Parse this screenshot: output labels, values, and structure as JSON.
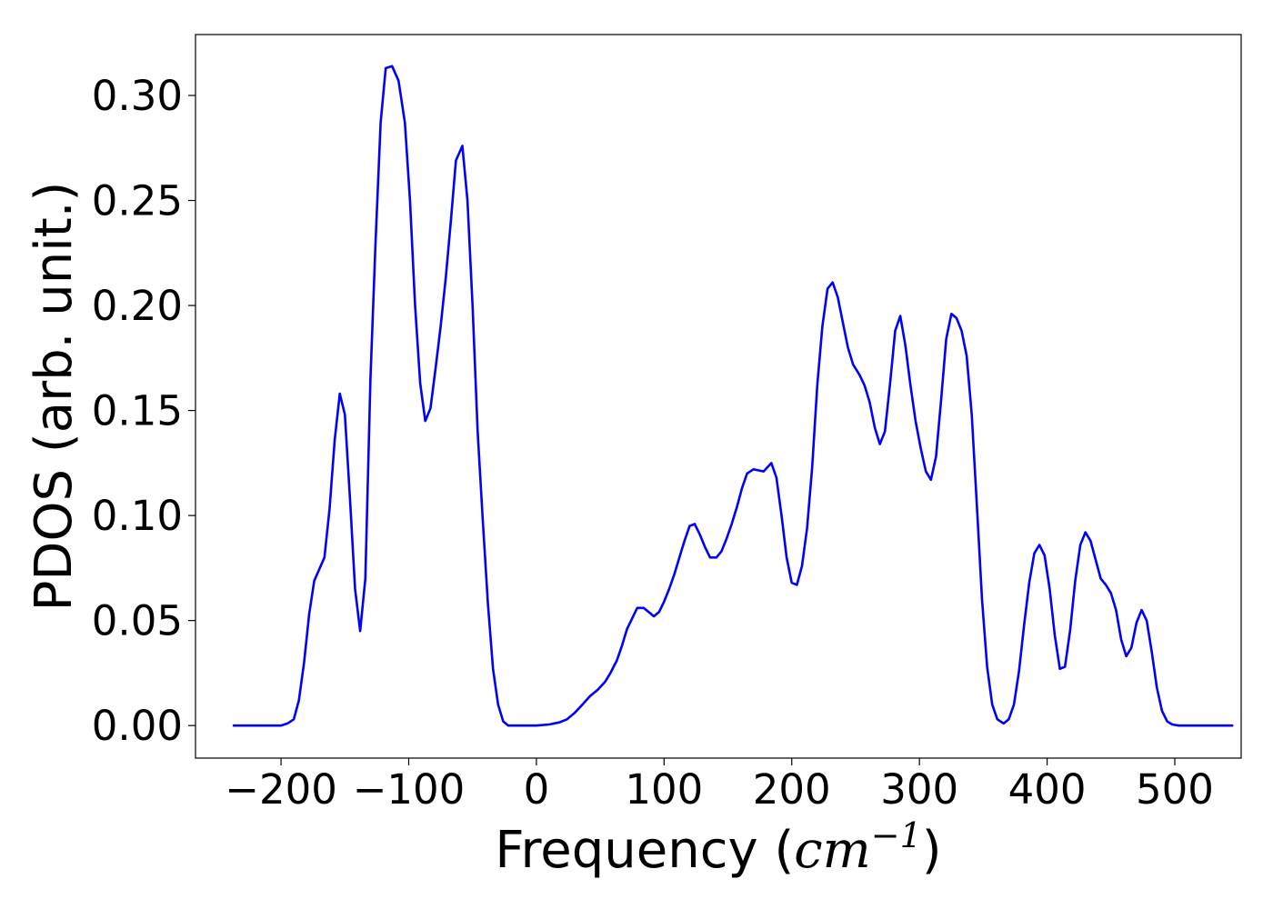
{
  "chart_data": {
    "type": "line",
    "title": "",
    "xlabel": {
      "prefix": "Frequency (",
      "math": "cm",
      "superscript": "−1",
      "suffix": ")"
    },
    "ylabel": "PDOS (arb. unit.)",
    "xlim": [
      -267,
      552
    ],
    "ylim": [
      -0.0155,
      0.329
    ],
    "x_ticks": [
      {
        "value": -200,
        "label": "−200"
      },
      {
        "value": -100,
        "label": "−100"
      },
      {
        "value": 0,
        "label": "0"
      },
      {
        "value": 100,
        "label": "100"
      },
      {
        "value": 200,
        "label": "200"
      },
      {
        "value": 300,
        "label": "300"
      },
      {
        "value": 400,
        "label": "400"
      },
      {
        "value": 500,
        "label": "500"
      }
    ],
    "y_ticks": [
      {
        "value": 0.0,
        "label": "0.00"
      },
      {
        "value": 0.05,
        "label": "0.05"
      },
      {
        "value": 0.1,
        "label": "0.10"
      },
      {
        "value": 0.15,
        "label": "0.15"
      },
      {
        "value": 0.2,
        "label": "0.20"
      },
      {
        "value": 0.25,
        "label": "0.25"
      },
      {
        "value": 0.3,
        "label": "0.30"
      }
    ],
    "grid": false,
    "legend": "none",
    "series": [
      {
        "color": "#0000ff",
        "points": [
          [
            -237,
            0.0
          ],
          [
            -200,
            0.0
          ],
          [
            -195,
            0.001
          ],
          [
            -190,
            0.003
          ],
          [
            -186,
            0.012
          ],
          [
            -182,
            0.03
          ],
          [
            -178,
            0.053
          ],
          [
            -174,
            0.069
          ],
          [
            -166,
            0.08
          ],
          [
            -162,
            0.103
          ],
          [
            -158,
            0.136
          ],
          [
            -154,
            0.158
          ],
          [
            -150,
            0.148
          ],
          [
            -146,
            0.108
          ],
          [
            -142,
            0.065
          ],
          [
            -138,
            0.045
          ],
          [
            -134,
            0.07
          ],
          [
            -130,
            0.165
          ],
          [
            -126,
            0.23
          ],
          [
            -122,
            0.287
          ],
          [
            -118,
            0.313
          ],
          [
            -113,
            0.314
          ],
          [
            -108,
            0.307
          ],
          [
            -103,
            0.287
          ],
          [
            -99,
            0.25
          ],
          [
            -95,
            0.2
          ],
          [
            -91,
            0.163
          ],
          [
            -87,
            0.145
          ],
          [
            -83,
            0.151
          ],
          [
            -79,
            0.17
          ],
          [
            -75,
            0.19
          ],
          [
            -71,
            0.213
          ],
          [
            -67,
            0.24
          ],
          [
            -63,
            0.269
          ],
          [
            -58,
            0.276
          ],
          [
            -54,
            0.25
          ],
          [
            -50,
            0.2
          ],
          [
            -46,
            0.14
          ],
          [
            -42,
            0.098
          ],
          [
            -38,
            0.058
          ],
          [
            -34,
            0.027
          ],
          [
            -30,
            0.01
          ],
          [
            -26,
            0.002
          ],
          [
            -22,
            0.0
          ],
          [
            -10,
            0.0
          ],
          [
            0,
            0.0
          ],
          [
            10,
            0.0005
          ],
          [
            18,
            0.0015
          ],
          [
            24,
            0.003
          ],
          [
            30,
            0.006
          ],
          [
            36,
            0.01
          ],
          [
            42,
            0.014
          ],
          [
            48,
            0.017
          ],
          [
            54,
            0.021
          ],
          [
            58,
            0.025
          ],
          [
            63,
            0.031
          ],
          [
            67,
            0.038
          ],
          [
            71,
            0.046
          ],
          [
            75,
            0.051
          ],
          [
            79,
            0.056
          ],
          [
            84,
            0.056
          ],
          [
            88,
            0.054
          ],
          [
            92,
            0.052
          ],
          [
            96,
            0.054
          ],
          [
            100,
            0.059
          ],
          [
            104,
            0.065
          ],
          [
            108,
            0.072
          ],
          [
            112,
            0.08
          ],
          [
            116,
            0.088
          ],
          [
            120,
            0.095
          ],
          [
            124,
            0.096
          ],
          [
            128,
            0.091
          ],
          [
            132,
            0.085
          ],
          [
            136,
            0.08
          ],
          [
            141,
            0.08
          ],
          [
            145,
            0.083
          ],
          [
            149,
            0.089
          ],
          [
            153,
            0.096
          ],
          [
            157,
            0.104
          ],
          [
            161,
            0.113
          ],
          [
            165,
            0.12
          ],
          [
            170,
            0.122
          ],
          [
            178,
            0.121
          ],
          [
            184,
            0.125
          ],
          [
            188,
            0.118
          ],
          [
            192,
            0.1
          ],
          [
            196,
            0.08
          ],
          [
            200,
            0.068
          ],
          [
            204,
            0.067
          ],
          [
            208,
            0.076
          ],
          [
            212,
            0.094
          ],
          [
            216,
            0.123
          ],
          [
            220,
            0.162
          ],
          [
            224,
            0.19
          ],
          [
            228,
            0.208
          ],
          [
            232,
            0.211
          ],
          [
            236,
            0.204
          ],
          [
            240,
            0.192
          ],
          [
            244,
            0.18
          ],
          [
            248,
            0.172
          ],
          [
            253,
            0.167
          ],
          [
            257,
            0.162
          ],
          [
            261,
            0.154
          ],
          [
            265,
            0.142
          ],
          [
            269,
            0.134
          ],
          [
            273,
            0.14
          ],
          [
            277,
            0.163
          ],
          [
            281,
            0.188
          ],
          [
            285,
            0.195
          ],
          [
            289,
            0.181
          ],
          [
            293,
            0.162
          ],
          [
            297,
            0.145
          ],
          [
            301,
            0.132
          ],
          [
            305,
            0.121
          ],
          [
            309,
            0.117
          ],
          [
            313,
            0.128
          ],
          [
            317,
            0.155
          ],
          [
            321,
            0.184
          ],
          [
            325,
            0.196
          ],
          [
            329,
            0.194
          ],
          [
            333,
            0.188
          ],
          [
            337,
            0.176
          ],
          [
            341,
            0.148
          ],
          [
            345,
            0.105
          ],
          [
            349,
            0.06
          ],
          [
            353,
            0.028
          ],
          [
            357,
            0.01
          ],
          [
            361,
            0.003
          ],
          [
            366,
            0.001
          ],
          [
            370,
            0.003
          ],
          [
            374,
            0.01
          ],
          [
            378,
            0.026
          ],
          [
            382,
            0.048
          ],
          [
            386,
            0.068
          ],
          [
            390,
            0.082
          ],
          [
            394,
            0.086
          ],
          [
            398,
            0.081
          ],
          [
            402,
            0.065
          ],
          [
            406,
            0.043
          ],
          [
            410,
            0.027
          ],
          [
            414,
            0.028
          ],
          [
            418,
            0.045
          ],
          [
            422,
            0.069
          ],
          [
            426,
            0.086
          ],
          [
            430,
            0.092
          ],
          [
            434,
            0.088
          ],
          [
            438,
            0.079
          ],
          [
            442,
            0.07
          ],
          [
            446,
            0.067
          ],
          [
            450,
            0.063
          ],
          [
            454,
            0.055
          ],
          [
            458,
            0.041
          ],
          [
            462,
            0.033
          ],
          [
            466,
            0.037
          ],
          [
            470,
            0.049
          ],
          [
            474,
            0.055
          ],
          [
            478,
            0.05
          ],
          [
            482,
            0.035
          ],
          [
            486,
            0.018
          ],
          [
            490,
            0.007
          ],
          [
            494,
            0.002
          ],
          [
            498,
            0.0005
          ],
          [
            503,
            0.0
          ],
          [
            513,
            0.0
          ],
          [
            545,
            0.0
          ]
        ]
      }
    ]
  }
}
